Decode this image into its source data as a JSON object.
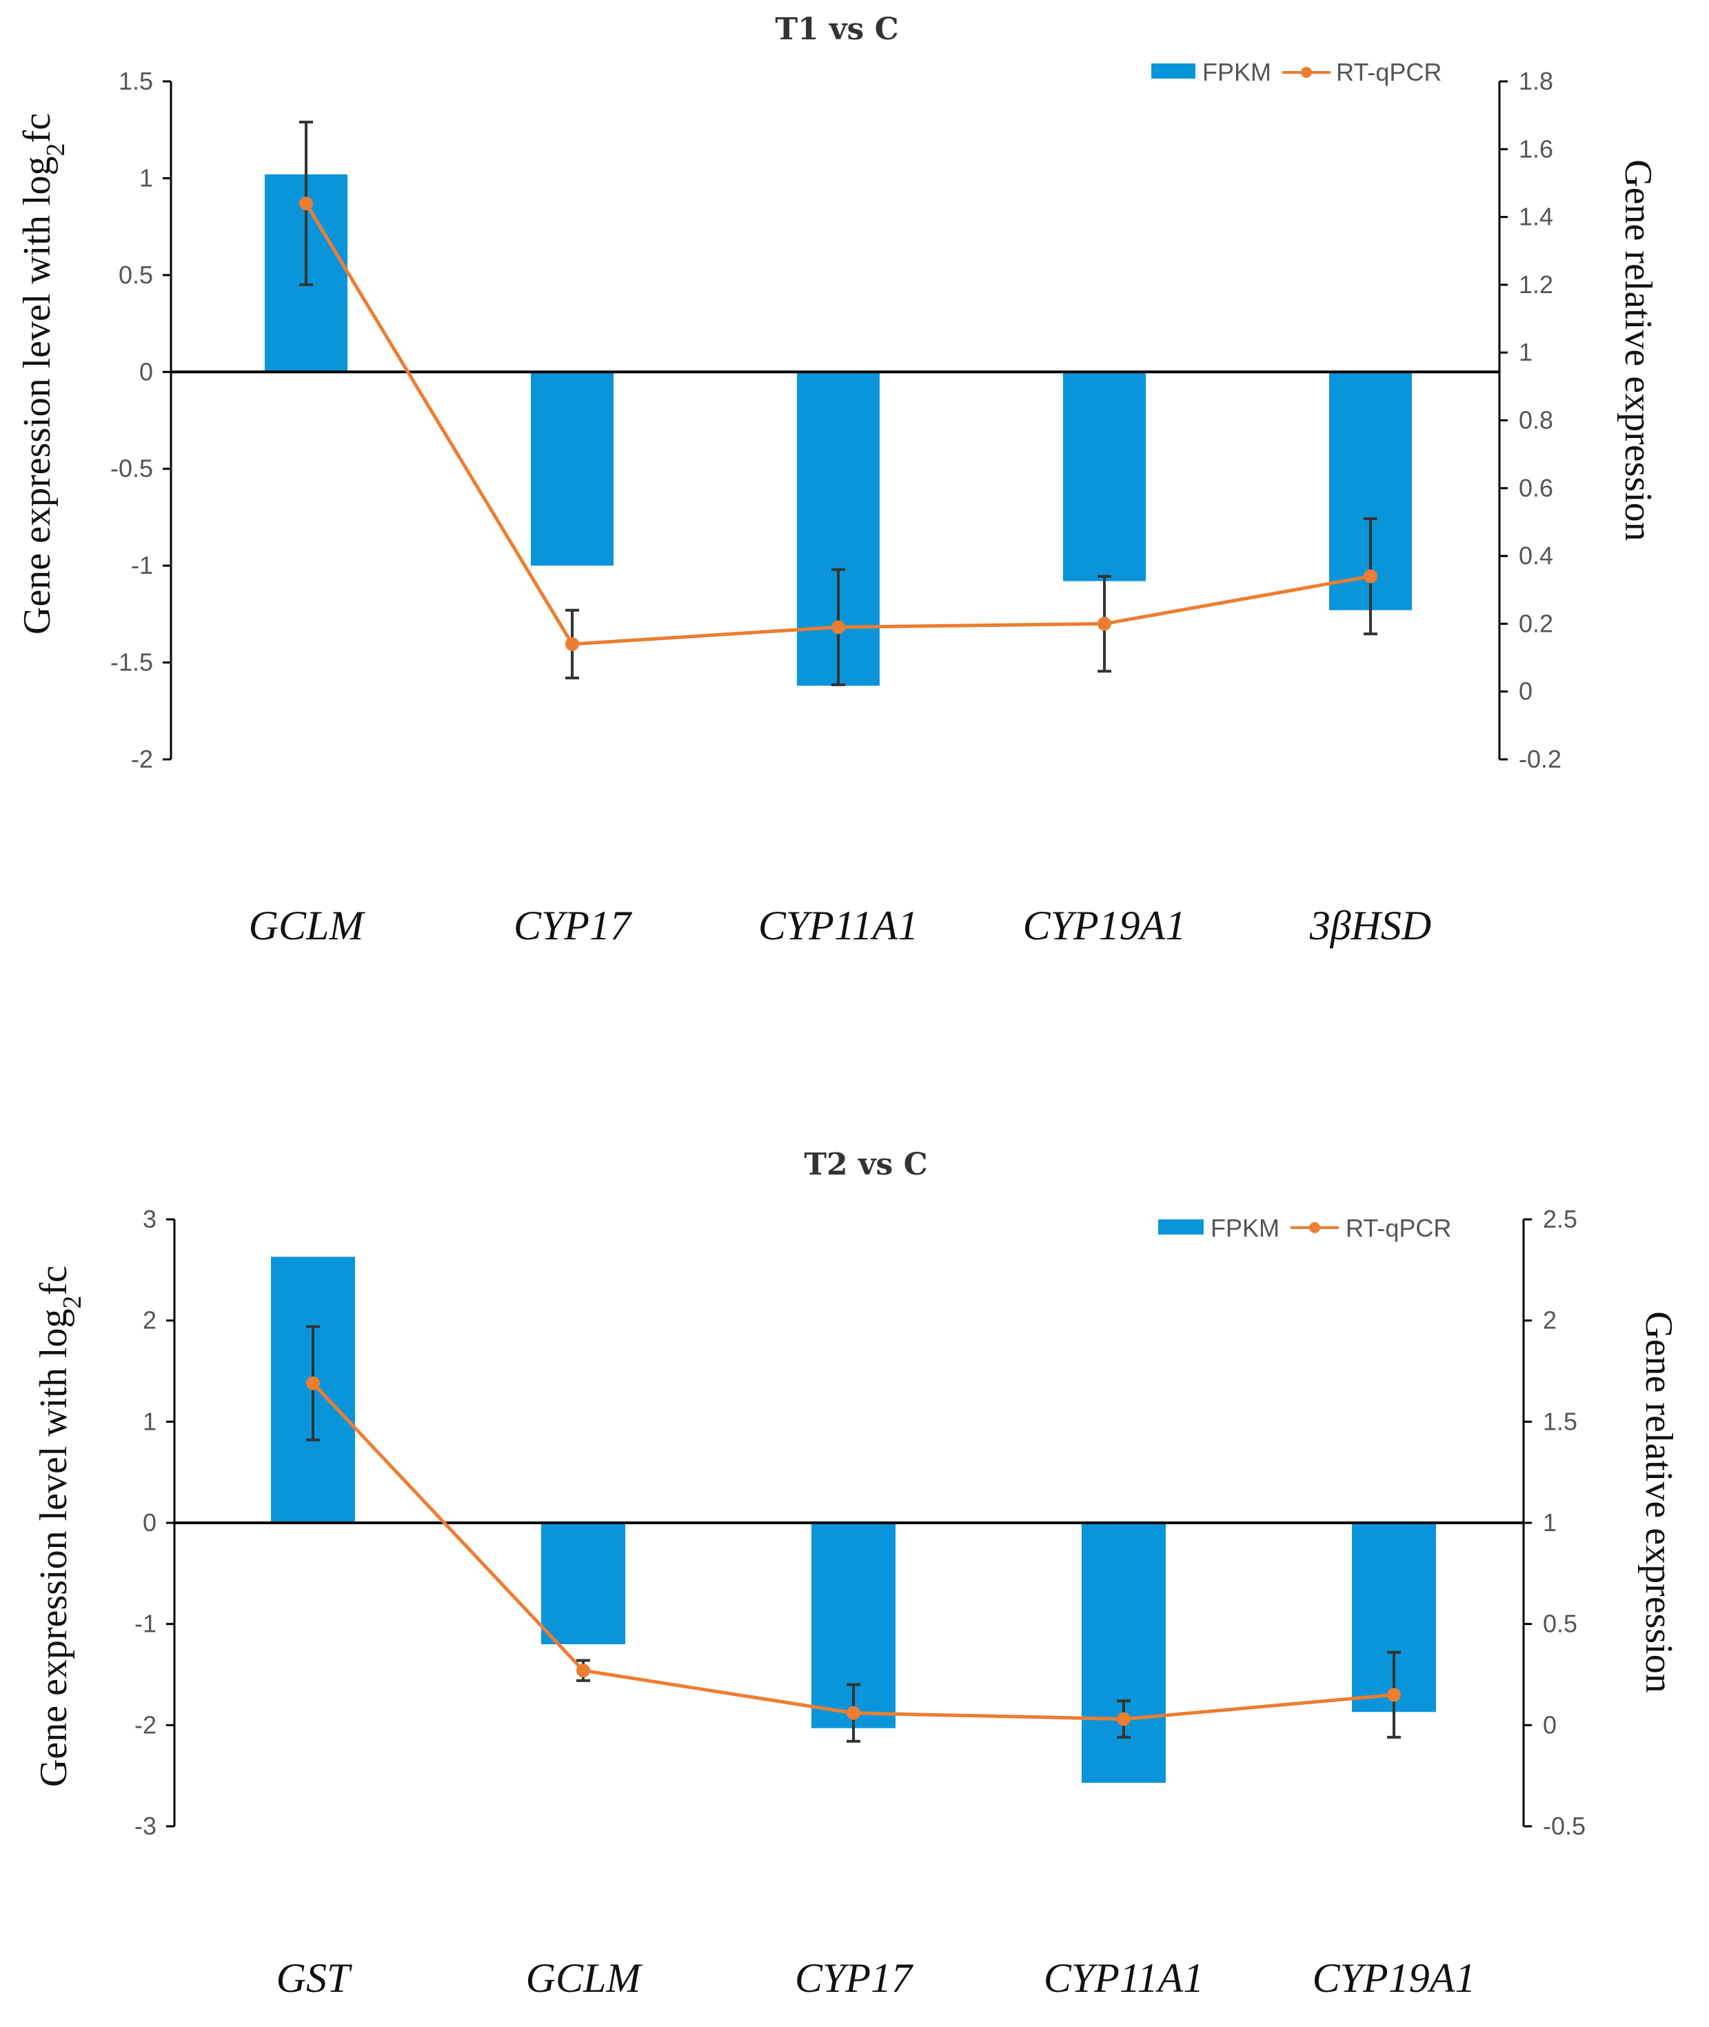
{
  "colors": {
    "fpkm": "#0a95db",
    "rtqpcr": "#ed7d31",
    "axis": "#000000",
    "errorbar": "#333333"
  },
  "chart_data": [
    {
      "type": "bar",
      "title": "T1 vs C",
      "ylabel_left": "Gene expression level with log",
      "ylabel_left_sub": "2",
      "ylabel_left_tail": "fc",
      "ylabel_right": "Gene relative expression",
      "categories": [
        "GCLM",
        "CYP17",
        "CYP11A1",
        "CYP19A1",
        "3βHSD"
      ],
      "ylim_left": [
        -2,
        1.5
      ],
      "yticks_left": [
        "1.5",
        "1",
        "0.5",
        "0",
        "-0.5",
        "-1",
        "-1.5",
        "-2"
      ],
      "ylim_right": [
        -0.2,
        1.8
      ],
      "yticks_right": [
        "1.8",
        "1.6",
        "1.4",
        "1.2",
        "1",
        "0.8",
        "0.6",
        "0.4",
        "0.2",
        "0",
        "-0.2"
      ],
      "legend": [
        "FPKM",
        "RT-qPCR"
      ],
      "series": [
        {
          "name": "FPKM",
          "axis": "left",
          "values": [
            1.02,
            -1.0,
            -1.62,
            -1.08,
            -1.23
          ]
        },
        {
          "name": "RT-qPCR",
          "axis": "right",
          "values": [
            1.44,
            0.14,
            0.19,
            0.2,
            0.34
          ],
          "error": [
            0.24,
            0.1,
            0.17,
            0.14,
            0.17
          ]
        }
      ]
    },
    {
      "type": "bar",
      "title": "T2 vs C",
      "ylabel_left": "Gene expression level with log",
      "ylabel_left_sub": "2",
      "ylabel_left_tail": "fc",
      "ylabel_right": "Gene relative expression",
      "categories": [
        "GST",
        "GCLM",
        "CYP17",
        "CYP11A1",
        "CYP19A1"
      ],
      "ylim_left": [
        -3,
        3
      ],
      "yticks_left": [
        "3",
        "2",
        "1",
        "0",
        "-1",
        "-2",
        "-3"
      ],
      "ylim_right": [
        -0.5,
        2.5
      ],
      "yticks_right": [
        "2.5",
        "2",
        "1.5",
        "1",
        "0.5",
        "0",
        "-0.5"
      ],
      "legend": [
        "FPKM",
        "RT-qPCR"
      ],
      "series": [
        {
          "name": "FPKM",
          "axis": "left",
          "values": [
            2.63,
            -1.2,
            -2.03,
            -2.57,
            -1.87
          ]
        },
        {
          "name": "RT-qPCR",
          "axis": "right",
          "values": [
            1.69,
            0.27,
            0.06,
            0.03,
            0.15
          ],
          "error": [
            0.28,
            0.05,
            0.14,
            0.09,
            0.21
          ]
        }
      ]
    }
  ]
}
